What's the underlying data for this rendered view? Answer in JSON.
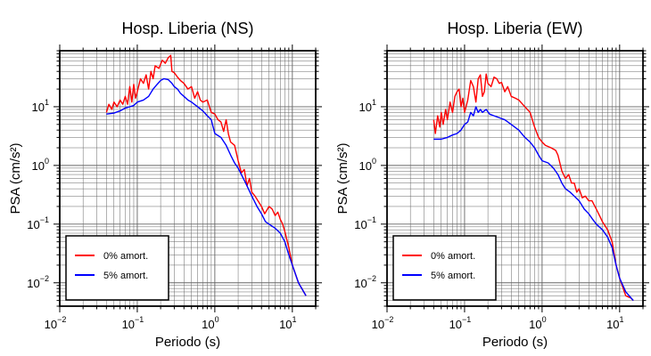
{
  "chart_data": [
    {
      "type": "line",
      "scale": {
        "x": "log",
        "y": "log"
      },
      "title": "Hosp. Liberia (NS)",
      "xlabel": "Periodo (s)",
      "ylabel": "PSA (cm/s²)",
      "xlim": [
        0.01,
        20
      ],
      "ylim": [
        0.004,
        90
      ],
      "x_ticks": [
        {
          "base": "10",
          "exp": "−2"
        },
        {
          "base": "10",
          "exp": "−1"
        },
        {
          "base": "10",
          "exp": "0"
        },
        {
          "base": "10",
          "exp": "1"
        }
      ],
      "y_ticks": [
        {
          "base": "10",
          "exp": "−2"
        },
        {
          "base": "10",
          "exp": "−1"
        },
        {
          "base": "10",
          "exp": "0"
        },
        {
          "base": "10",
          "exp": "1"
        }
      ],
      "legend": {
        "position": "bottom-left"
      },
      "grid": true,
      "series": [
        {
          "name": "0% amort.",
          "color": "#ff0000",
          "points": [
            [
              0.04,
              8
            ],
            [
              0.043,
              11
            ],
            [
              0.047,
              9
            ],
            [
              0.05,
              12
            ],
            [
              0.055,
              10
            ],
            [
              0.06,
              13
            ],
            [
              0.065,
              11
            ],
            [
              0.07,
              15
            ],
            [
              0.075,
              11
            ],
            [
              0.08,
              22
            ],
            [
              0.085,
              12
            ],
            [
              0.09,
              24
            ],
            [
              0.095,
              14
            ],
            [
              0.1,
              18
            ],
            [
              0.11,
              30
            ],
            [
              0.12,
              25
            ],
            [
              0.13,
              35
            ],
            [
              0.14,
              20
            ],
            [
              0.15,
              40
            ],
            [
              0.16,
              30
            ],
            [
              0.17,
              50
            ],
            [
              0.19,
              45
            ],
            [
              0.21,
              62
            ],
            [
              0.23,
              55
            ],
            [
              0.25,
              68
            ],
            [
              0.27,
              75
            ],
            [
              0.28,
              40
            ],
            [
              0.3,
              38
            ],
            [
              0.33,
              32
            ],
            [
              0.36,
              28
            ],
            [
              0.4,
              25
            ],
            [
              0.45,
              20
            ],
            [
              0.5,
              22
            ],
            [
              0.55,
              14
            ],
            [
              0.6,
              18
            ],
            [
              0.65,
              13
            ],
            [
              0.7,
              12
            ],
            [
              0.8,
              13
            ],
            [
              0.9,
              8
            ],
            [
              1.0,
              7.5
            ],
            [
              1.1,
              6
            ],
            [
              1.2,
              5.5
            ],
            [
              1.3,
              3.8
            ],
            [
              1.4,
              6
            ],
            [
              1.5,
              3.4
            ],
            [
              1.6,
              2.5
            ],
            [
              1.8,
              2.2
            ],
            [
              2.0,
              1.2
            ],
            [
              2.2,
              0.75
            ],
            [
              2.4,
              0.85
            ],
            [
              2.6,
              0.45
            ],
            [
              2.8,
              0.6
            ],
            [
              3.0,
              0.35
            ],
            [
              3.3,
              0.3
            ],
            [
              3.6,
              0.25
            ],
            [
              4.0,
              0.2
            ],
            [
              4.4,
              0.15
            ],
            [
              5.0,
              0.2
            ],
            [
              5.5,
              0.18
            ],
            [
              6.0,
              0.14
            ],
            [
              6.5,
              0.16
            ],
            [
              7.0,
              0.12
            ],
            [
              7.5,
              0.1
            ],
            [
              8.0,
              0.075
            ],
            [
              9.0,
              0.04
            ],
            [
              10,
              0.02
            ],
            [
              12,
              0.01
            ],
            [
              15,
              0.006
            ]
          ]
        },
        {
          "name": "5% amort.",
          "color": "#0000ff",
          "points": [
            [
              0.04,
              7.5
            ],
            [
              0.05,
              7.8
            ],
            [
              0.06,
              8.5
            ],
            [
              0.07,
              9.5
            ],
            [
              0.08,
              10
            ],
            [
              0.09,
              10.5
            ],
            [
              0.1,
              12
            ],
            [
              0.12,
              13
            ],
            [
              0.14,
              15
            ],
            [
              0.16,
              20
            ],
            [
              0.18,
              24
            ],
            [
              0.2,
              28
            ],
            [
              0.22,
              30
            ],
            [
              0.25,
              29
            ],
            [
              0.28,
              25
            ],
            [
              0.3,
              22
            ],
            [
              0.33,
              20
            ],
            [
              0.36,
              17
            ],
            [
              0.4,
              15
            ],
            [
              0.45,
              13
            ],
            [
              0.5,
              12
            ],
            [
              0.6,
              10
            ],
            [
              0.7,
              8.5
            ],
            [
              0.8,
              7
            ],
            [
              0.9,
              6
            ],
            [
              1.0,
              3.5
            ],
            [
              1.2,
              3
            ],
            [
              1.4,
              2.2
            ],
            [
              1.6,
              1.5
            ],
            [
              1.8,
              1.1
            ],
            [
              2.0,
              0.9
            ],
            [
              2.5,
              0.5
            ],
            [
              3.0,
              0.3
            ],
            [
              3.5,
              0.2
            ],
            [
              4.0,
              0.15
            ],
            [
              4.5,
              0.11
            ],
            [
              5.0,
              0.1
            ],
            [
              6.0,
              0.085
            ],
            [
              7.0,
              0.07
            ],
            [
              8.0,
              0.05
            ],
            [
              9.0,
              0.03
            ],
            [
              10,
              0.02
            ],
            [
              12,
              0.01
            ],
            [
              15,
              0.006
            ]
          ]
        }
      ]
    },
    {
      "type": "line",
      "scale": {
        "x": "log",
        "y": "log"
      },
      "title": "Hosp. Liberia (EW)",
      "xlabel": "Periodo (s)",
      "ylabel": "PSA (cm/s²)",
      "xlim": [
        0.01,
        20
      ],
      "ylim": [
        0.004,
        90
      ],
      "x_ticks": [
        {
          "base": "10",
          "exp": "−2"
        },
        {
          "base": "10",
          "exp": "−1"
        },
        {
          "base": "10",
          "exp": "0"
        },
        {
          "base": "10",
          "exp": "1"
        }
      ],
      "y_ticks": [
        {
          "base": "10",
          "exp": "−2"
        },
        {
          "base": "10",
          "exp": "−1"
        },
        {
          "base": "10",
          "exp": "0"
        },
        {
          "base": "10",
          "exp": "1"
        }
      ],
      "legend": {
        "position": "bottom-left"
      },
      "grid": true,
      "series": [
        {
          "name": "0% amort.",
          "color": "#ff0000",
          "points": [
            [
              0.04,
              6
            ],
            [
              0.042,
              3.5
            ],
            [
              0.045,
              7
            ],
            [
              0.048,
              4.5
            ],
            [
              0.05,
              8
            ],
            [
              0.053,
              5
            ],
            [
              0.057,
              9
            ],
            [
              0.06,
              6
            ],
            [
              0.065,
              12
            ],
            [
              0.07,
              8
            ],
            [
              0.075,
              15
            ],
            [
              0.08,
              18
            ],
            [
              0.085,
              20
            ],
            [
              0.09,
              10
            ],
            [
              0.095,
              14
            ],
            [
              0.1,
              8
            ],
            [
              0.11,
              13
            ],
            [
              0.12,
              28
            ],
            [
              0.13,
              22
            ],
            [
              0.14,
              12
            ],
            [
              0.15,
              30
            ],
            [
              0.16,
              35
            ],
            [
              0.17,
              15
            ],
            [
              0.18,
              18
            ],
            [
              0.19,
              36
            ],
            [
              0.2,
              25
            ],
            [
              0.22,
              22
            ],
            [
              0.24,
              32
            ],
            [
              0.26,
              30
            ],
            [
              0.28,
              25
            ],
            [
              0.3,
              26
            ],
            [
              0.33,
              18
            ],
            [
              0.36,
              22
            ],
            [
              0.4,
              15
            ],
            [
              0.45,
              14
            ],
            [
              0.5,
              13
            ],
            [
              0.6,
              10
            ],
            [
              0.7,
              8
            ],
            [
              0.8,
              4.5
            ],
            [
              0.9,
              3
            ],
            [
              1.0,
              2.5
            ],
            [
              1.1,
              2.2
            ],
            [
              1.3,
              2
            ],
            [
              1.5,
              1.8
            ],
            [
              1.6,
              1.5
            ],
            [
              1.8,
              0.8
            ],
            [
              2.0,
              0.6
            ],
            [
              2.2,
              0.7
            ],
            [
              2.4,
              0.5
            ],
            [
              2.6,
              0.5
            ],
            [
              2.8,
              0.35
            ],
            [
              3.0,
              0.4
            ],
            [
              3.3,
              0.28
            ],
            [
              3.6,
              0.3
            ],
            [
              4.0,
              0.25
            ],
            [
              4.4,
              0.25
            ],
            [
              5.0,
              0.18
            ],
            [
              5.5,
              0.14
            ],
            [
              6.0,
              0.11
            ],
            [
              7.0,
              0.08
            ],
            [
              8.0,
              0.05
            ],
            [
              9.0,
              0.02
            ],
            [
              10,
              0.012
            ],
            [
              12,
              0.006
            ],
            [
              14,
              0.0055
            ],
            [
              15,
              0.005
            ]
          ]
        },
        {
          "name": "5% amort.",
          "color": "#0000ff",
          "points": [
            [
              0.04,
              2.8
            ],
            [
              0.05,
              2.8
            ],
            [
              0.06,
              3
            ],
            [
              0.07,
              3.3
            ],
            [
              0.08,
              3.5
            ],
            [
              0.09,
              4
            ],
            [
              0.1,
              5
            ],
            [
              0.11,
              5.5
            ],
            [
              0.12,
              8
            ],
            [
              0.13,
              7
            ],
            [
              0.14,
              10
            ],
            [
              0.15,
              8
            ],
            [
              0.16,
              9
            ],
            [
              0.17,
              8
            ],
            [
              0.19,
              9
            ],
            [
              0.21,
              7.5
            ],
            [
              0.24,
              7
            ],
            [
              0.28,
              6.5
            ],
            [
              0.33,
              6
            ],
            [
              0.4,
              5
            ],
            [
              0.5,
              4
            ],
            [
              0.6,
              3
            ],
            [
              0.7,
              2.5
            ],
            [
              0.8,
              2
            ],
            [
              0.9,
              1.5
            ],
            [
              1.0,
              1.2
            ],
            [
              1.2,
              1.1
            ],
            [
              1.4,
              0.9
            ],
            [
              1.6,
              0.7
            ],
            [
              1.8,
              0.5
            ],
            [
              2.0,
              0.4
            ],
            [
              2.3,
              0.35
            ],
            [
              2.6,
              0.3
            ],
            [
              3.0,
              0.25
            ],
            [
              3.5,
              0.18
            ],
            [
              4.0,
              0.15
            ],
            [
              4.5,
              0.12
            ],
            [
              5.0,
              0.1
            ],
            [
              6.0,
              0.08
            ],
            [
              7.0,
              0.06
            ],
            [
              8.0,
              0.04
            ],
            [
              9.0,
              0.02
            ],
            [
              10,
              0.012
            ],
            [
              12,
              0.007
            ],
            [
              15,
              0.005
            ]
          ]
        }
      ]
    }
  ]
}
